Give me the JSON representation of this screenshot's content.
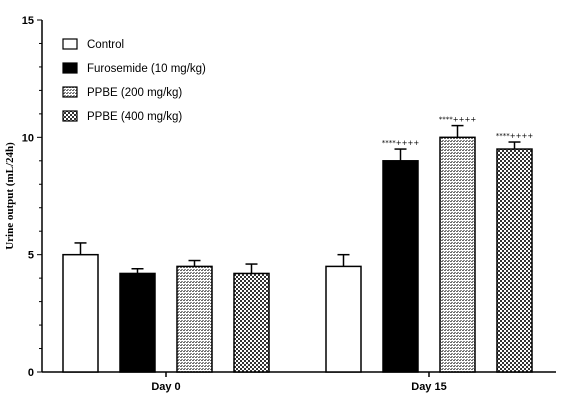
{
  "colors": {
    "axis": "#000000",
    "bar_outline": "#000000",
    "furosemide_fill": "#000000",
    "control_fill": "#ffffff"
  },
  "chart_data": {
    "type": "bar",
    "ylabel": "Urine output (mL/24h)",
    "xlabel": "",
    "ylim": [
      0,
      15
    ],
    "yticks": [
      0,
      5,
      10,
      15
    ],
    "grid": false,
    "legend_position": "top-left",
    "categories": [
      "Day 0",
      "Day 15"
    ],
    "series": [
      {
        "name": "Control",
        "pattern": "white",
        "values": [
          5.0,
          4.5
        ],
        "errors": [
          0.5,
          0.5
        ],
        "annotations": [
          "",
          ""
        ]
      },
      {
        "name": "Furosemide (10 mg/kg)",
        "pattern": "black",
        "values": [
          4.2,
          9.0
        ],
        "errors": [
          0.2,
          0.5
        ],
        "annotations": [
          "",
          "****++++"
        ]
      },
      {
        "name": "PPBE (200 mg/kg)",
        "pattern": "dense-dots",
        "values": [
          4.5,
          10.0
        ],
        "errors": [
          0.25,
          0.5
        ],
        "annotations": [
          "",
          "****++++"
        ]
      },
      {
        "name": "PPBE (400 mg/kg)",
        "pattern": "checker",
        "values": [
          4.2,
          9.5
        ],
        "errors": [
          0.4,
          0.3
        ],
        "annotations": [
          "",
          "****++++"
        ]
      }
    ]
  }
}
